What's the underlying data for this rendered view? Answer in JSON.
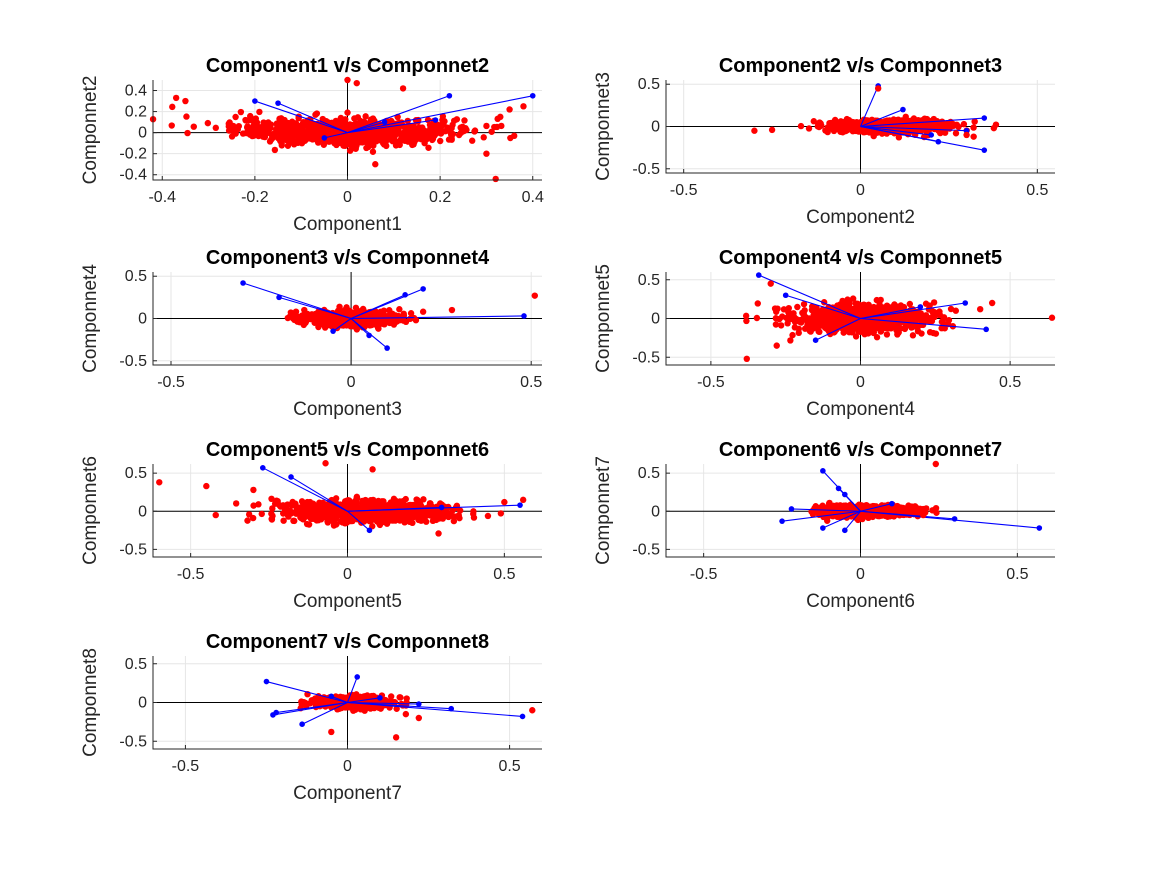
{
  "chart_data": [
    {
      "type": "scatter",
      "title": "Component1 v/s Componnet2",
      "xlabel": "Component1",
      "ylabel": "Componnet2",
      "xlim": [
        -0.42,
        0.42
      ],
      "ylim": [
        -0.45,
        0.5
      ],
      "xticks": [
        -0.4,
        -0.2,
        0,
        0.2,
        0.4
      ],
      "xtick_labels": [
        "-0.4",
        "-0.2",
        "0",
        "0.2",
        "0.4"
      ],
      "yticks": [
        -0.4,
        -0.2,
        0,
        0.2,
        0.4
      ],
      "ytick_labels": [
        "-0.4",
        "-0.2",
        "0",
        "0.2",
        "0.4"
      ],
      "grid": true,
      "cloud_center": [
        0,
        0
      ],
      "cloud_spread": [
        0.12,
        0.06
      ],
      "points_color": "#ff0000",
      "vector_color": "#0000ff",
      "vectors": [
        [
          0.4,
          0.35
        ],
        [
          0.22,
          0.35
        ],
        [
          -0.2,
          0.3
        ],
        [
          -0.15,
          0.28
        ],
        [
          0.19,
          0.12
        ],
        [
          -0.05,
          -0.05
        ],
        [
          0.08,
          0.1
        ]
      ],
      "points": [
        [
          -0.37,
          0.33
        ],
        [
          -0.35,
          0.3
        ],
        [
          0.32,
          -0.44
        ],
        [
          0.3,
          -0.2
        ],
        [
          0.0,
          0.5
        ],
        [
          0.02,
          0.47
        ],
        [
          0.38,
          0.25
        ],
        [
          0.35,
          0.22
        ],
        [
          0.33,
          0.15
        ],
        [
          0.12,
          0.42
        ],
        [
          0.06,
          -0.3
        ]
      ]
    },
    {
      "type": "scatter",
      "title": "Component2 v/s Componnet3",
      "xlabel": "Component2",
      "ylabel": "Componnet3",
      "xlim": [
        -0.55,
        0.55
      ],
      "ylim": [
        -0.55,
        0.55
      ],
      "xticks": [
        -0.5,
        0,
        0.5
      ],
      "xtick_labels": [
        "-0.5",
        "0",
        "0.5"
      ],
      "yticks": [
        -0.5,
        0,
        0.5
      ],
      "ytick_labels": [
        "-0.5",
        "0",
        "0.5"
      ],
      "grid": true,
      "cloud_center": [
        0.08,
        0
      ],
      "cloud_spread": [
        0.08,
        0.035
      ],
      "points_color": "#ff0000",
      "vector_color": "#0000ff",
      "vectors": [
        [
          0.05,
          0.48
        ],
        [
          0.35,
          0.1
        ],
        [
          0.35,
          -0.28
        ],
        [
          0.22,
          -0.18
        ],
        [
          0.3,
          -0.05
        ],
        [
          0.12,
          0.2
        ],
        [
          0.2,
          -0.1
        ]
      ],
      "points": [
        [
          -0.3,
          -0.05
        ],
        [
          -0.25,
          -0.04
        ],
        [
          0.05,
          0.45
        ],
        [
          0.32,
          -0.12
        ],
        [
          0.3,
          -0.1
        ],
        [
          0.27,
          -0.08
        ]
      ]
    },
    {
      "type": "scatter",
      "title": "Component3 v/s Componnet4",
      "xlabel": "Component3",
      "ylabel": "Componnet4",
      "xlim": [
        -0.55,
        0.53
      ],
      "ylim": [
        -0.55,
        0.55
      ],
      "xticks": [
        -0.5,
        0,
        0.5
      ],
      "xtick_labels": [
        "-0.5",
        "0",
        "0.5"
      ],
      "yticks": [
        -0.5,
        0,
        0.5
      ],
      "ytick_labels": [
        "-0.5",
        "0",
        "0.5"
      ],
      "grid": true,
      "cloud_center": [
        0,
        0
      ],
      "cloud_spread": [
        0.06,
        0.04
      ],
      "points_color": "#ff0000",
      "vector_color": "#0000ff",
      "vectors": [
        [
          -0.3,
          0.42
        ],
        [
          -0.2,
          0.25
        ],
        [
          0.2,
          0.35
        ],
        [
          0.15,
          0.28
        ],
        [
          0.48,
          0.03
        ],
        [
          0.1,
          -0.35
        ],
        [
          0.05,
          -0.2
        ],
        [
          -0.05,
          -0.15
        ]
      ],
      "points": [
        [
          0.51,
          0.27
        ],
        [
          0.28,
          0.1
        ],
        [
          0.2,
          0.08
        ],
        [
          0.18,
          -0.02
        ],
        [
          -0.13,
          0.1
        ]
      ]
    },
    {
      "type": "scatter",
      "title": "Component4 v/s Componnet5",
      "xlabel": "Component4",
      "ylabel": "Componnet5",
      "xlim": [
        -0.65,
        0.65
      ],
      "ylim": [
        -0.6,
        0.6
      ],
      "xticks": [
        -0.5,
        0,
        0.5
      ],
      "xtick_labels": [
        "-0.5",
        "0",
        "0.5"
      ],
      "yticks": [
        -0.5,
        0,
        0.5
      ],
      "ytick_labels": [
        "-0.5",
        "0",
        "0.5"
      ],
      "grid": true,
      "cloud_center": [
        0,
        0
      ],
      "cloud_spread": [
        0.12,
        0.09
      ],
      "points_color": "#ff0000",
      "vector_color": "#0000ff",
      "vectors": [
        [
          -0.34,
          0.56
        ],
        [
          0.42,
          -0.14
        ],
        [
          0.35,
          0.2
        ],
        [
          -0.15,
          -0.28
        ],
        [
          0.2,
          0.15
        ],
        [
          -0.25,
          0.3
        ]
      ],
      "points": [
        [
          0.64,
          0.01
        ],
        [
          -0.38,
          -0.52
        ],
        [
          0.44,
          0.2
        ],
        [
          0.4,
          0.12
        ],
        [
          -0.3,
          0.45
        ],
        [
          -0.28,
          -0.35
        ]
      ]
    },
    {
      "type": "scatter",
      "title": "Component5 v/s Componnet6",
      "xlabel": "Component5",
      "ylabel": "Componnet6",
      "xlim": [
        -0.62,
        0.62
      ],
      "ylim": [
        -0.6,
        0.62
      ],
      "xticks": [
        -0.5,
        0,
        0.5
      ],
      "xtick_labels": [
        "-0.5",
        "0",
        "0.5"
      ],
      "yticks": [
        -0.5,
        0,
        0.5
      ],
      "ytick_labels": [
        "-0.5",
        "0",
        "0.5"
      ],
      "grid": true,
      "cloud_center": [
        0.05,
        0
      ],
      "cloud_spread": [
        0.13,
        0.07
      ],
      "points_color": "#ff0000",
      "vector_color": "#0000ff",
      "vectors": [
        [
          -0.27,
          0.57
        ],
        [
          0.55,
          0.08
        ],
        [
          -0.18,
          0.45
        ],
        [
          0.07,
          -0.25
        ],
        [
          0.3,
          0.05
        ]
      ],
      "points": [
        [
          -0.6,
          0.38
        ],
        [
          -0.42,
          -0.05
        ],
        [
          -0.45,
          0.33
        ],
        [
          -0.07,
          0.63
        ],
        [
          0.08,
          0.55
        ],
        [
          0.56,
          0.15
        ],
        [
          0.5,
          0.12
        ],
        [
          -0.3,
          0.28
        ]
      ]
    },
    {
      "type": "scatter",
      "title": "Component6 v/s Componnet7",
      "xlabel": "Component6",
      "ylabel": "Componnet7",
      "xlim": [
        -0.62,
        0.62
      ],
      "ylim": [
        -0.6,
        0.62
      ],
      "xticks": [
        -0.5,
        0,
        0.5
      ],
      "xtick_labels": [
        "-0.5",
        "0",
        "0.5"
      ],
      "yticks": [
        -0.5,
        0,
        0.5
      ],
      "ytick_labels": [
        "-0.5",
        "0",
        "0.5"
      ],
      "grid": true,
      "cloud_center": [
        0.02,
        0
      ],
      "cloud_spread": [
        0.07,
        0.035
      ],
      "points_color": "#ff0000",
      "vector_color": "#0000ff",
      "vectors": [
        [
          -0.12,
          0.53
        ],
        [
          0.57,
          -0.22
        ],
        [
          0.3,
          -0.1
        ],
        [
          -0.25,
          -0.13
        ],
        [
          -0.22,
          0.03
        ],
        [
          -0.12,
          -0.22
        ],
        [
          -0.05,
          -0.25
        ],
        [
          -0.07,
          0.3
        ],
        [
          -0.05,
          0.22
        ],
        [
          0.1,
          0.1
        ]
      ],
      "points": [
        [
          0.24,
          0.62
        ],
        [
          0.2,
          -0.05
        ],
        [
          0.17,
          0.02
        ],
        [
          -0.1,
          0.1
        ]
      ]
    },
    {
      "type": "scatter",
      "title": "Component7 v/s Componnet8",
      "xlabel": "Component7",
      "ylabel": "Componnet8",
      "xlim": [
        -0.6,
        0.6
      ],
      "ylim": [
        -0.6,
        0.6
      ],
      "xticks": [
        -0.5,
        0,
        0.5
      ],
      "xtick_labels": [
        "-0.5",
        "0",
        "0.5"
      ],
      "yticks": [
        -0.5,
        0,
        0.5
      ],
      "ytick_labels": [
        "-0.5",
        "0",
        "0.5"
      ],
      "grid": true,
      "cloud_center": [
        0.02,
        0
      ],
      "cloud_spread": [
        0.055,
        0.035
      ],
      "points_color": "#ff0000",
      "vector_color": "#0000ff",
      "vectors": [
        [
          -0.25,
          0.27
        ],
        [
          0.54,
          -0.18
        ],
        [
          0.32,
          -0.08
        ],
        [
          -0.23,
          -0.16
        ],
        [
          -0.14,
          -0.28
        ],
        [
          -0.05,
          0.08
        ],
        [
          0.03,
          0.33
        ],
        [
          0.1,
          0.06
        ],
        [
          0.22,
          -0.02
        ],
        [
          -0.22,
          -0.13
        ]
      ],
      "points": [
        [
          0.57,
          -0.1
        ],
        [
          0.15,
          -0.45
        ],
        [
          0.22,
          -0.2
        ],
        [
          -0.05,
          -0.38
        ],
        [
          0.18,
          -0.15
        ],
        [
          -0.1,
          0.05
        ]
      ]
    }
  ]
}
